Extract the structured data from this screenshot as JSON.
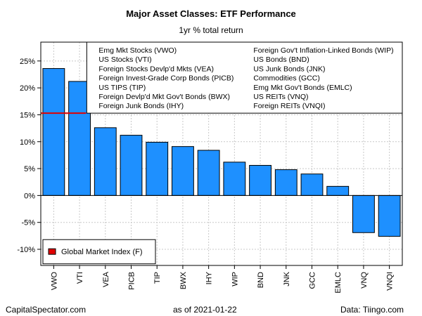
{
  "chart_data": {
    "type": "bar",
    "title": "Major Asset Classes: ETF Performance",
    "subtitle": "1yr % total return",
    "categories": [
      "VWO",
      "VTI",
      "VEA",
      "PICB",
      "TIP",
      "BWX",
      "IHY",
      "WIP",
      "BND",
      "JNK",
      "GCC",
      "EMLC",
      "VNQ",
      "VNQI"
    ],
    "values": [
      23.6,
      21.2,
      12.6,
      11.2,
      9.9,
      9.1,
      8.4,
      6.2,
      5.6,
      4.8,
      4.0,
      1.7,
      -6.9,
      -7.6
    ],
    "ylim": [
      -13,
      28.5
    ],
    "yticks": [
      -10,
      -5,
      0,
      5,
      10,
      15,
      20,
      25
    ],
    "ytick_labels": [
      "-10%",
      "-5%",
      "0%",
      "5%",
      "10%",
      "15%",
      "20%",
      "25%"
    ],
    "bar_color": "#1E90FF",
    "benchmark": {
      "name": "Global Market Index (F)",
      "value": 15.3,
      "color": "#e00000"
    },
    "legend_entries": [
      "Emg Mkt Stocks (VWO)",
      "US Stocks (VTI)",
      "Foreign Stocks Devlp'd Mkts (VEA)",
      "Foreign Invest-Grade Corp Bonds (PICB)",
      "US TIPS (TIP)",
      "Foreign Devlp'd Mkt Gov't Bonds (BWX)",
      "Foreign Junk Bonds (IHY)",
      "Foreign Gov't Inflation-Linked Bonds (WIP)",
      "US Bonds (BND)",
      "US Junk Bonds (JNK)",
      "Commodities (GCC)",
      "Emg Mkt Gov't Bonds (EMLC)",
      "US REITs (VNQ)",
      "Foreign REITs (VNQI)"
    ],
    "grid": true
  },
  "footer": {
    "left": "CapitalSpectator.com",
    "center": "as of   2021-01-22",
    "right": "Data: Tiingo.com"
  }
}
